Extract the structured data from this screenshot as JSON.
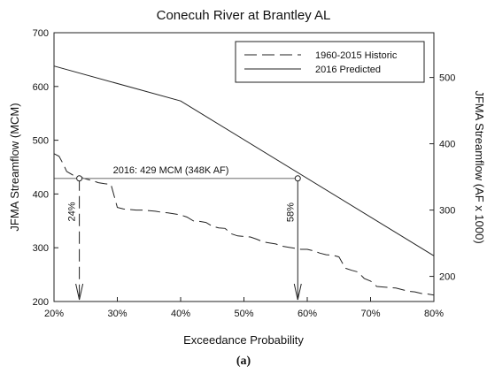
{
  "chart_data": {
    "type": "line",
    "title": "Conecuh River at Brantley AL",
    "xlabel": "Exceedance Probability",
    "ylabel": "JFMA Streamflow (MCM)",
    "y2label": "JFMA Streamflow (AF x 1000)",
    "caption": "(a)",
    "xlim": [
      20,
      80
    ],
    "ylim": [
      200,
      700
    ],
    "y2lim": [
      162.1,
      567.5
    ],
    "x_ticks": [
      20,
      30,
      40,
      50,
      60,
      70,
      80
    ],
    "x_tick_labels": [
      "20%",
      "30%",
      "40%",
      "50%",
      "60%",
      "70%",
      "80%"
    ],
    "y_ticks": [
      200,
      300,
      400,
      500,
      600,
      700
    ],
    "y_tick_labels": [
      "200",
      "300",
      "400",
      "500",
      "600",
      "700"
    ],
    "y2_ticks": [
      200,
      300,
      400,
      500
    ],
    "y2_tick_labels": [
      "200",
      "300",
      "400",
      "500"
    ],
    "grid": false,
    "legend_position": "top-right",
    "series": [
      {
        "name": "1960-2015 Historic",
        "style": "dashed",
        "color": "#222222",
        "x": [
          20,
          20.8,
          21.5,
          22,
          23,
          24,
          25,
          26,
          27,
          28,
          29,
          30,
          31,
          32,
          33,
          34,
          35,
          36,
          37,
          38,
          39,
          40,
          41,
          42,
          43,
          44,
          45,
          46,
          47,
          48,
          49,
          50,
          51,
          52,
          53,
          54,
          55,
          56,
          57,
          58,
          59,
          60,
          61,
          62,
          63,
          64,
          65,
          66,
          67,
          68,
          69,
          70,
          71,
          72,
          73,
          74,
          75,
          76,
          77,
          78,
          79,
          80
        ],
        "y": [
          475,
          470,
          455,
          442,
          435,
          432,
          428,
          425,
          421,
          419,
          418,
          375,
          372,
          371,
          370,
          370,
          369,
          368,
          366,
          365,
          363,
          361,
          357,
          350,
          349,
          347,
          340,
          337,
          336,
          326,
          322,
          321,
          320,
          316,
          311,
          309,
          307,
          303,
          301,
          299,
          297,
          297,
          294,
          290,
          287,
          286,
          283,
          262,
          258,
          255,
          243,
          238,
          228,
          227,
          226,
          225,
          222,
          219,
          218,
          215,
          214,
          212
        ]
      },
      {
        "name": "2016 Predicted",
        "style": "solid",
        "color": "#222222",
        "x": [
          20,
          40,
          80
        ],
        "y": [
          638,
          573,
          285
        ]
      }
    ],
    "annotations": {
      "target_label": "2016: 429 MCM (348K AF)",
      "target_value": 429,
      "historic_probability": 24,
      "historic_label": "24%",
      "predicted_probability": 58.5,
      "predicted_label": "58%"
    }
  }
}
